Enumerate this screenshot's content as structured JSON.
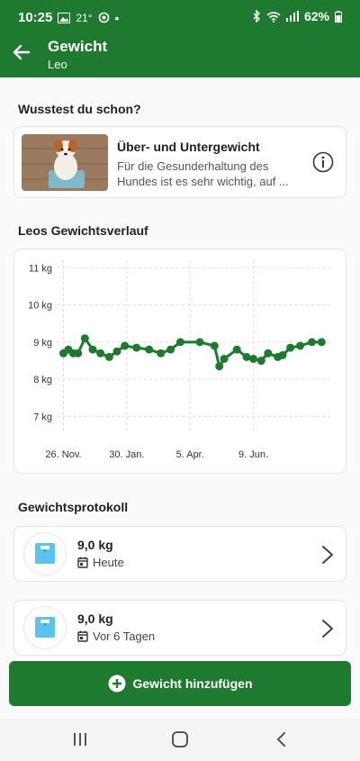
{
  "status_bar": {
    "time": "10:25",
    "temp": "21°",
    "battery": "62%",
    "icons": [
      "gallery-icon",
      "weather-icon",
      "dot-icon",
      "bluetooth-icon",
      "wifi-icon",
      "signal-icon",
      "battery-icon"
    ]
  },
  "app_bar": {
    "title": "Gewicht",
    "subtitle": "Leo"
  },
  "tip": {
    "section_title": "Wusstest du schon?",
    "title": "Über- und Untergewicht",
    "text": "Für die Gesunderhaltung des Hundes ist es sehr wichtig, auf ..."
  },
  "chart_section_title": "Leos Gewichtsverlauf",
  "chart_data": {
    "type": "line",
    "title": "",
    "xlabel": "",
    "ylabel": "",
    "ylim": [
      6.6,
      11.2
    ],
    "y_ticks": [
      "11 kg",
      "10 kg",
      "9 kg",
      "8 kg",
      "7 kg"
    ],
    "y_tick_values": [
      11,
      10,
      9,
      8,
      7
    ],
    "x_ticks": [
      "26. Nov.",
      "30. Jan.",
      "5. Apr.",
      "9. Jun."
    ],
    "x_tick_values": [
      0,
      65,
      130,
      195
    ],
    "grid": true,
    "series": [
      {
        "color": "#1d7a2f",
        "points": [
          [
            0,
            8.7
          ],
          [
            5,
            8.8
          ],
          [
            10,
            8.7
          ],
          [
            15,
            8.7
          ],
          [
            22,
            9.1
          ],
          [
            30,
            8.8
          ],
          [
            38,
            8.7
          ],
          [
            47,
            8.6
          ],
          [
            55,
            8.75
          ],
          [
            63,
            8.9
          ],
          [
            75,
            8.85
          ],
          [
            88,
            8.8
          ],
          [
            100,
            8.7
          ],
          [
            110,
            8.8
          ],
          [
            120,
            9.0
          ],
          [
            140,
            9.0
          ],
          [
            155,
            8.9
          ],
          [
            160,
            8.35
          ],
          [
            165,
            8.55
          ],
          [
            178,
            8.8
          ],
          [
            188,
            8.6
          ],
          [
            195,
            8.55
          ],
          [
            203,
            8.5
          ],
          [
            210,
            8.7
          ],
          [
            220,
            8.6
          ],
          [
            225,
            8.65
          ],
          [
            233,
            8.85
          ],
          [
            243,
            8.9
          ],
          [
            255,
            9.0
          ],
          [
            265,
            9.0
          ]
        ]
      }
    ],
    "xlim": [
      -6,
      273
    ]
  },
  "log": {
    "section_title": "Gewichtsprotokoll",
    "entries": [
      {
        "weight": "9,0 kg",
        "date": "Heute"
      },
      {
        "weight": "9,0 kg",
        "date": "Vor 6 Tagen"
      }
    ]
  },
  "add_button": "Gewicht hinzufügen",
  "colors": {
    "primary": "#1d7a2f",
    "scale_blue": "#5bc3ec"
  }
}
